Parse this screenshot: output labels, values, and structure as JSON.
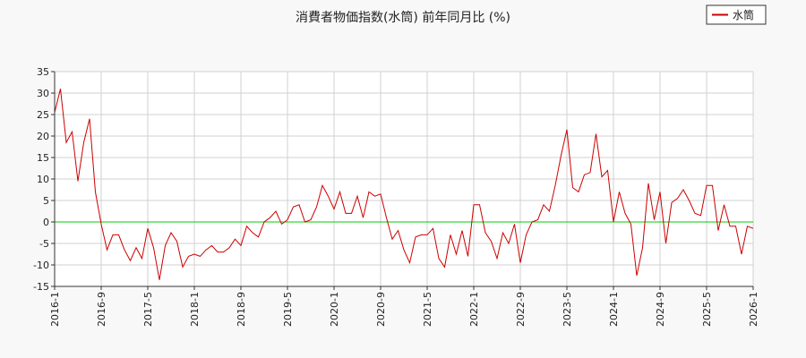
{
  "chart_data": {
    "type": "line",
    "title": "消費者物価指数(水筒) 前年同月比 (%)",
    "xlabel": "",
    "ylabel": "",
    "ylim": [
      -15,
      35
    ],
    "yticks": [
      35,
      30,
      25,
      20,
      15,
      10,
      5,
      0,
      -5,
      -10,
      -15
    ],
    "xticks": [
      "2016-1",
      "2016-9",
      "2017-5",
      "2018-1",
      "2018-9",
      "2019-5",
      "2020-1",
      "2020-9",
      "2021-5",
      "2022-1",
      "2022-9",
      "2023-5",
      "2024-1",
      "2024-9",
      "2025-5",
      "2026-1"
    ],
    "grid": true,
    "legend": "top-right",
    "reference_line": {
      "y": 0,
      "color": "#00cc00"
    },
    "series": [
      {
        "name": "水筒",
        "color": "#cc0000",
        "start": "2016-1",
        "values": [
          25.5,
          31,
          18.5,
          21,
          9.5,
          18.5,
          24,
          7,
          -0.5,
          -6.5,
          -3,
          -3,
          -6.5,
          -9,
          -6,
          -8.5,
          -1.5,
          -6,
          -13.5,
          -5.5,
          -2.5,
          -4.5,
          -10.5,
          -8,
          -7.5,
          -8,
          -6.5,
          -5.5,
          -7,
          -7,
          -6,
          -4,
          -5.5,
          -1,
          -2.5,
          -3.5,
          0,
          1,
          2.5,
          -0.5,
          0.5,
          3.5,
          4,
          0,
          0.5,
          3.5,
          8.5,
          6,
          3,
          7,
          2,
          2,
          6,
          1,
          7,
          6,
          6.5,
          1,
          -4,
          -2,
          -6.5,
          -9.5,
          -3.5,
          -3,
          -3,
          -1.5,
          -8.5,
          -10.5,
          -3,
          -7.5,
          -2,
          -8,
          4,
          4,
          -2.5,
          -4.5,
          -8.5,
          -2.5,
          -5,
          -0.5,
          -9.5,
          -3,
          0,
          0.5,
          4,
          2.5,
          8.5,
          15.5,
          21.5,
          8,
          7,
          11,
          11.5,
          20.5,
          10.5,
          12,
          0,
          7,
          2,
          -0.5,
          -12.5,
          -6,
          9,
          0.5,
          7,
          -5,
          4.5,
          5.5,
          7.5,
          5,
          2,
          1.5,
          8.5,
          8.5,
          -2,
          4,
          -1,
          -1,
          -7.5,
          -1,
          -1.5
        ]
      }
    ]
  }
}
